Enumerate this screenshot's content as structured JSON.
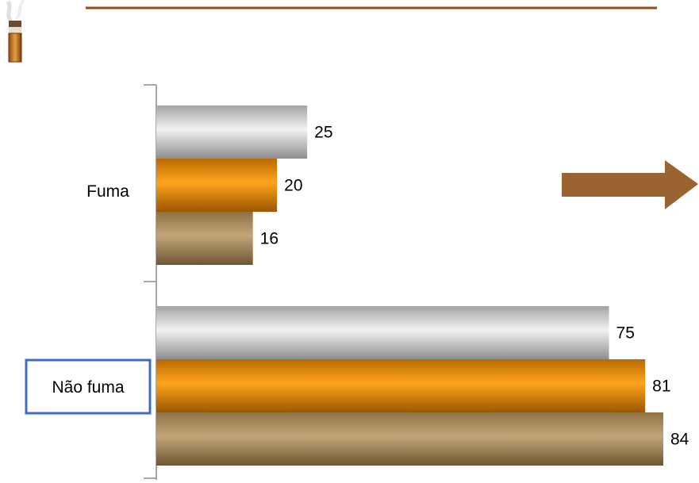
{
  "colors": {
    "title_rule": "#9a4a18",
    "arrow": "#9a6432",
    "highlight_box": "#3f6bc4",
    "axis": "#8c8c8c"
  },
  "icon": "cigarette-icon",
  "chart_data": {
    "type": "bar",
    "orientation": "horizontal",
    "categories": [
      "Fuma",
      "Não fuma"
    ],
    "series": [
      {
        "values": [
          25,
          75
        ],
        "color": "#c8c8c8"
      },
      {
        "values": [
          20,
          81
        ],
        "color": "#f39a10"
      },
      {
        "values": [
          16,
          84
        ],
        "color": "#a88a5c"
      }
    ],
    "xlim": [
      0,
      84
    ],
    "highlighted_category": "Não fuma",
    "grid": false,
    "legend": "none"
  }
}
